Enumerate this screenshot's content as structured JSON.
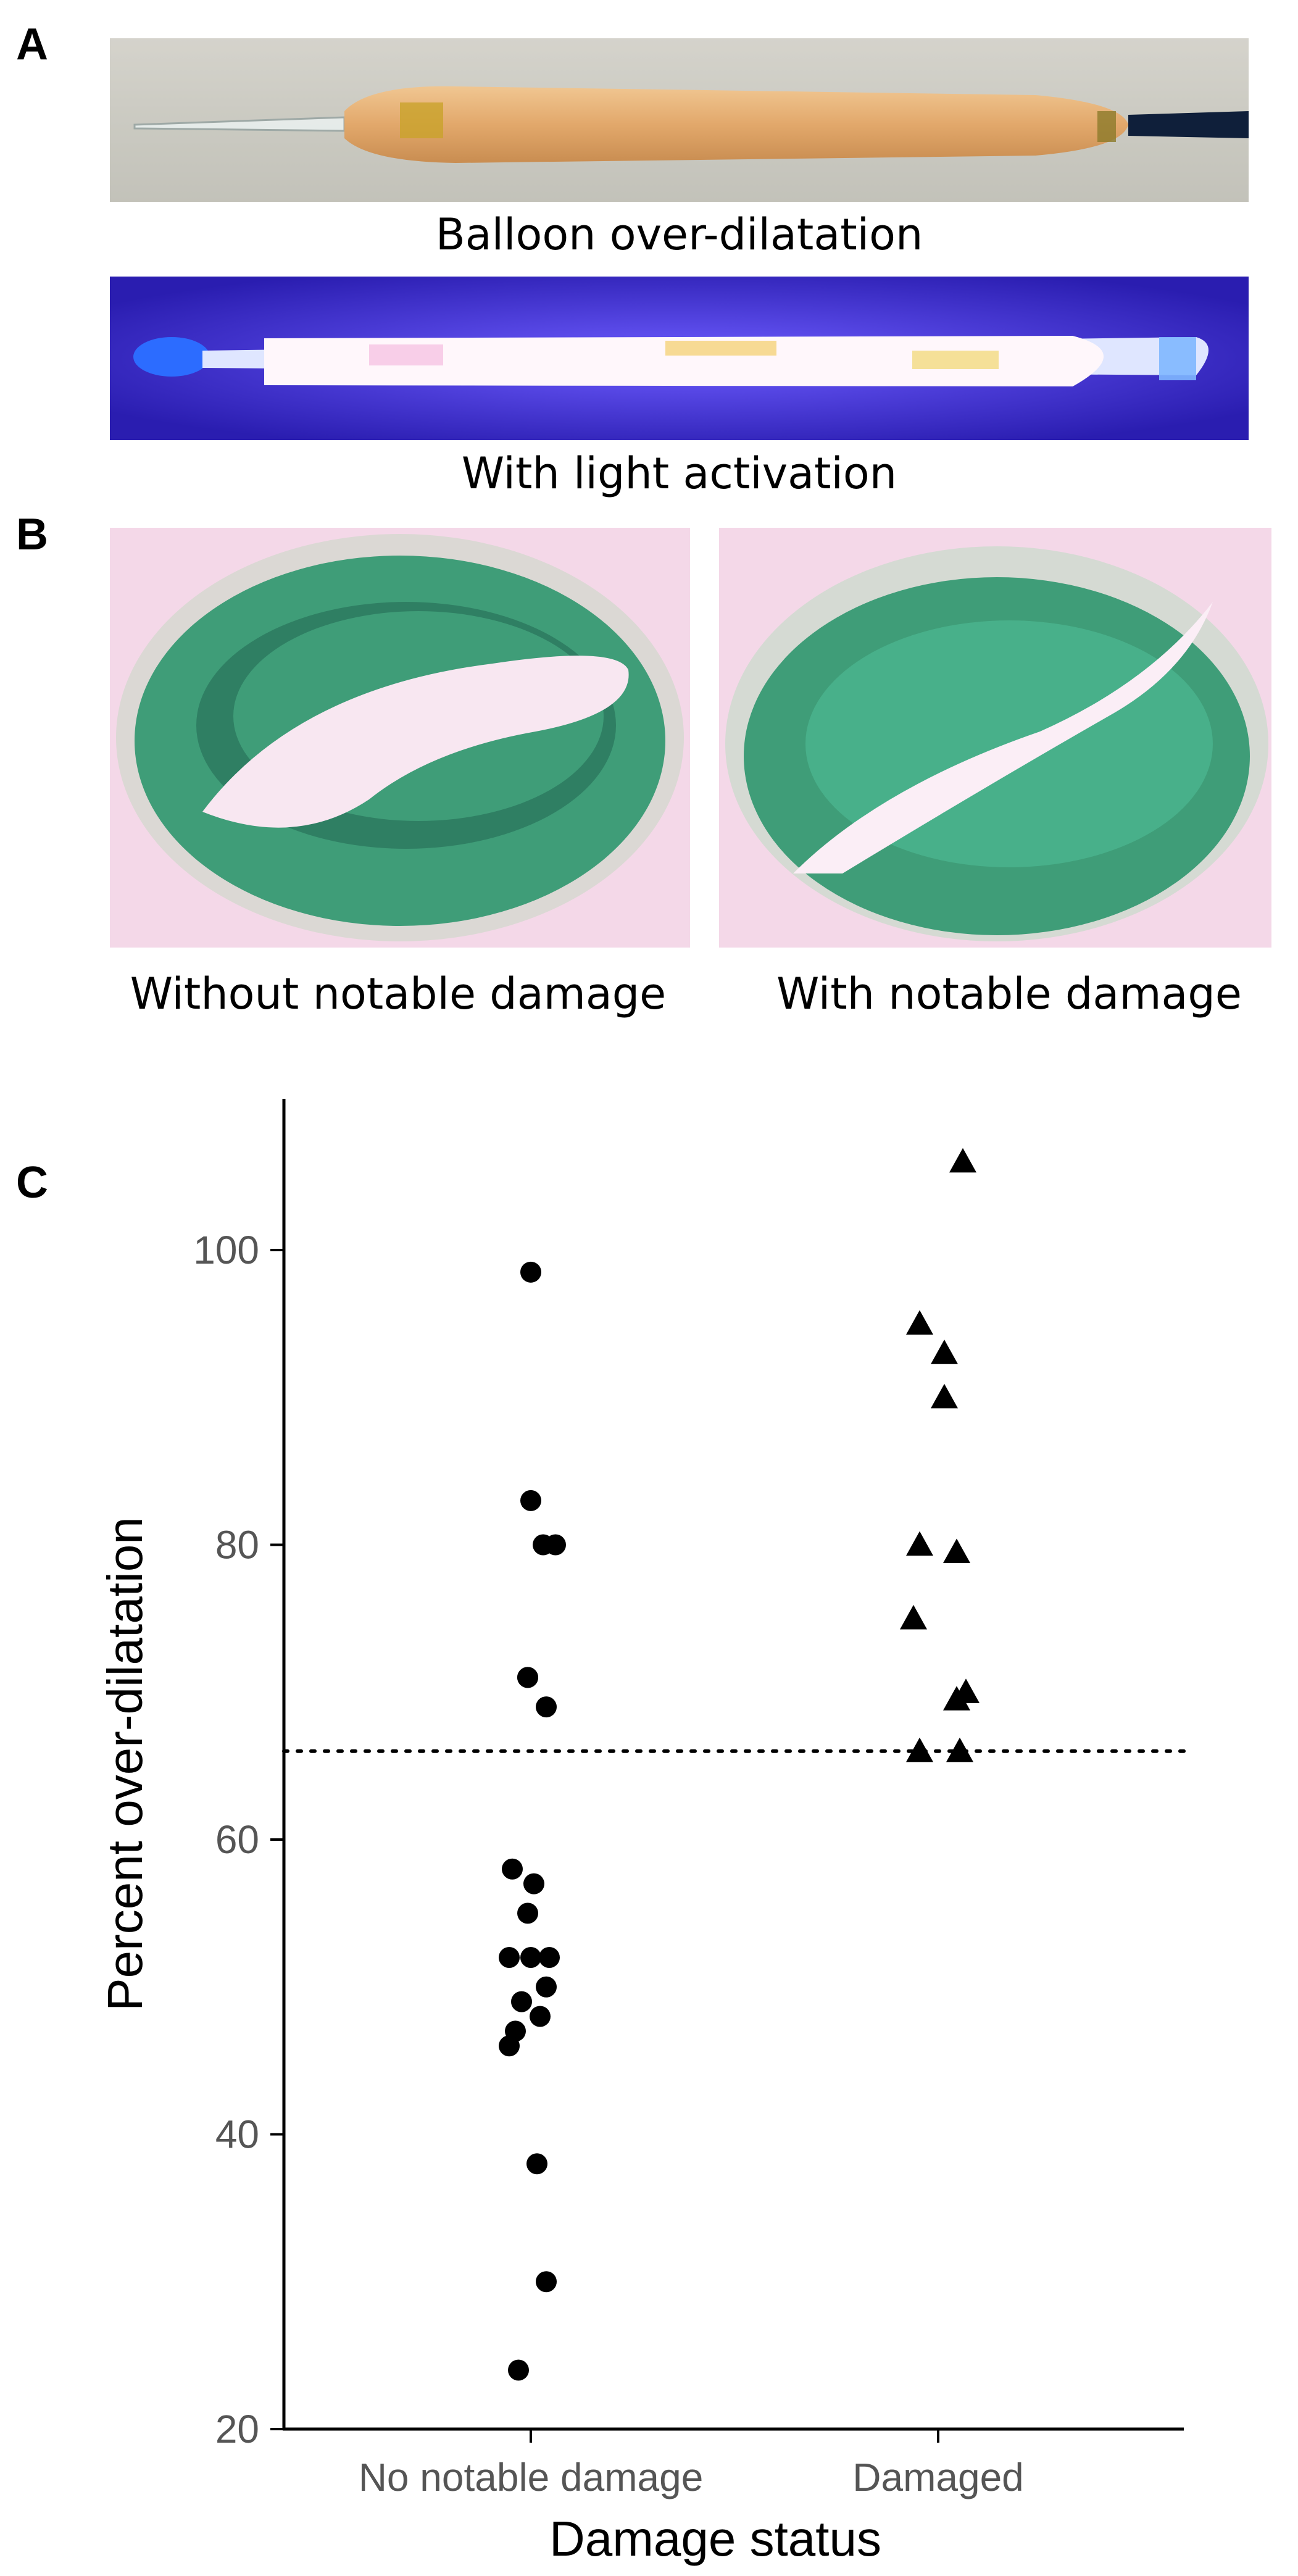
{
  "panels": {
    "a": {
      "letter": "A",
      "caption_top": "Balloon over-dilatation",
      "caption_bottom": "With light activation"
    },
    "b": {
      "letter": "B",
      "caption_left": "Without notable damage",
      "caption_right": "With notable damage"
    },
    "c": {
      "letter": "C"
    }
  },
  "colors": {
    "balloon_tissue": "#e3b17a",
    "uv_glow": "#3b2fd6",
    "stain_green": "#3f9d78",
    "stain_bg": "#f4d8e8",
    "marker": "#000000"
  },
  "chart_data": {
    "type": "scatter",
    "title": "",
    "xlabel": "Damage status",
    "ylabel": "Percent over-dilatation",
    "categories": [
      "No notable damage",
      "Damaged"
    ],
    "ylim": [
      20,
      110
    ],
    "yticks": [
      20,
      40,
      60,
      80,
      100
    ],
    "threshold": 66,
    "grid": false,
    "legend": "none",
    "series": [
      {
        "category": "No notable damage",
        "marker": "circle",
        "values": [
          98.5,
          83,
          80,
          80,
          71,
          71,
          69,
          58,
          57,
          55,
          52,
          52,
          52,
          50,
          49,
          48,
          47,
          46,
          38,
          30,
          24
        ]
      },
      {
        "category": "Damaged",
        "marker": "triangle",
        "values": [
          106,
          95,
          93,
          90,
          80,
          79.5,
          75,
          70,
          69.5,
          66,
          66
        ]
      }
    ]
  }
}
